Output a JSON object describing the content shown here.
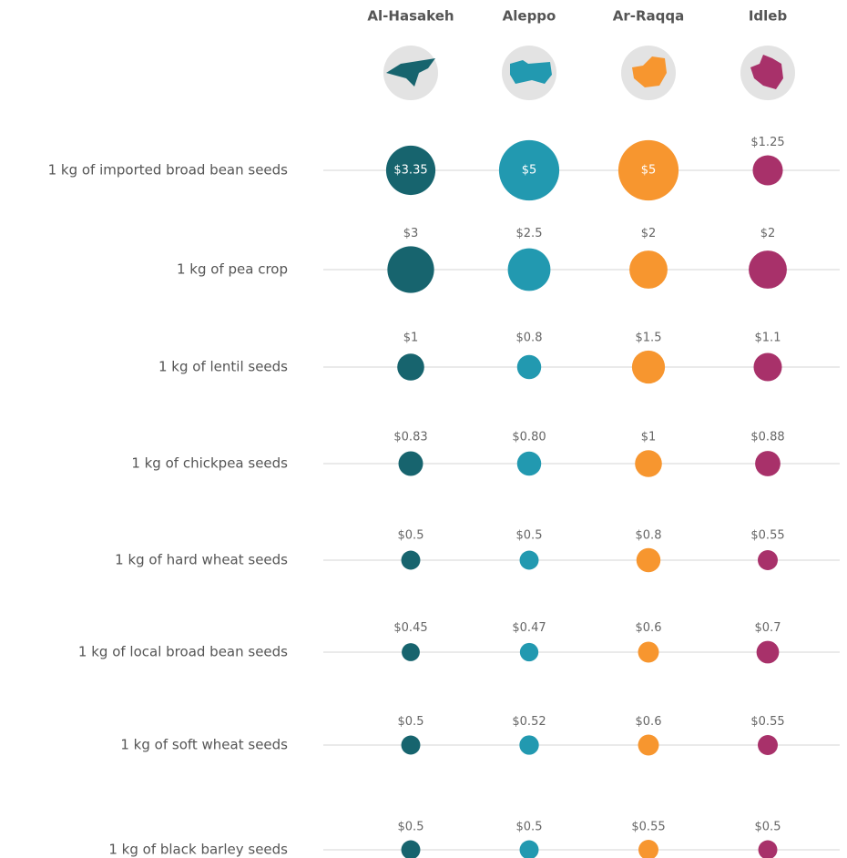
{
  "chart_data": {
    "type": "bubble-grid",
    "columns": [
      "Al-Hasakeh",
      "Aleppo",
      "Ar-Raqqa",
      "Idleb"
    ],
    "colors": [
      "#17646e",
      "#2299b0",
      "#f7962f",
      "#a8316a"
    ],
    "rows": [
      {
        "name": "1 kg of imported broad bean seeds",
        "values": [
          3.35,
          5,
          5,
          1.25
        ],
        "value_labels": [
          "$3.35",
          "$5",
          "$5",
          "$1.25"
        ]
      },
      {
        "name": "1 kg of pea crop",
        "values": [
          3,
          2.5,
          2,
          2
        ],
        "value_labels": [
          "$3",
          "$2.5",
          "$2",
          "$2"
        ]
      },
      {
        "name": "1 kg of lentil seeds",
        "values": [
          1,
          0.8,
          1.5,
          1.1
        ],
        "value_labels": [
          "$1",
          "$0.8",
          "$1.5",
          "$1.1"
        ]
      },
      {
        "name": "1 kg of chickpea seeds",
        "values": [
          0.83,
          0.8,
          1,
          0.88
        ],
        "value_labels": [
          "$0.83",
          "$0.80",
          "$1",
          "$0.88"
        ]
      },
      {
        "name": "1 kg of hard wheat seeds",
        "values": [
          0.5,
          0.5,
          0.8,
          0.55
        ],
        "value_labels": [
          "$0.5",
          "$0.5",
          "$0.8",
          "$0.55"
        ]
      },
      {
        "name": "1 kg of local broad bean seeds",
        "values": [
          0.45,
          0.47,
          0.6,
          0.7
        ],
        "value_labels": [
          "$0.45",
          "$0.47",
          "$0.6",
          "$0.7"
        ]
      },
      {
        "name": "1 kg of soft wheat seeds",
        "values": [
          0.5,
          0.52,
          0.6,
          0.55
        ],
        "value_labels": [
          "$0.5",
          "$0.52",
          "$0.6",
          "$0.55"
        ]
      },
      {
        "name": "1 kg of black barley seeds",
        "values": [
          0.5,
          0.5,
          0.55,
          0.5
        ],
        "value_labels": [
          "$0.5",
          "$0.5",
          "$0.55",
          "$0.5"
        ]
      }
    ]
  }
}
